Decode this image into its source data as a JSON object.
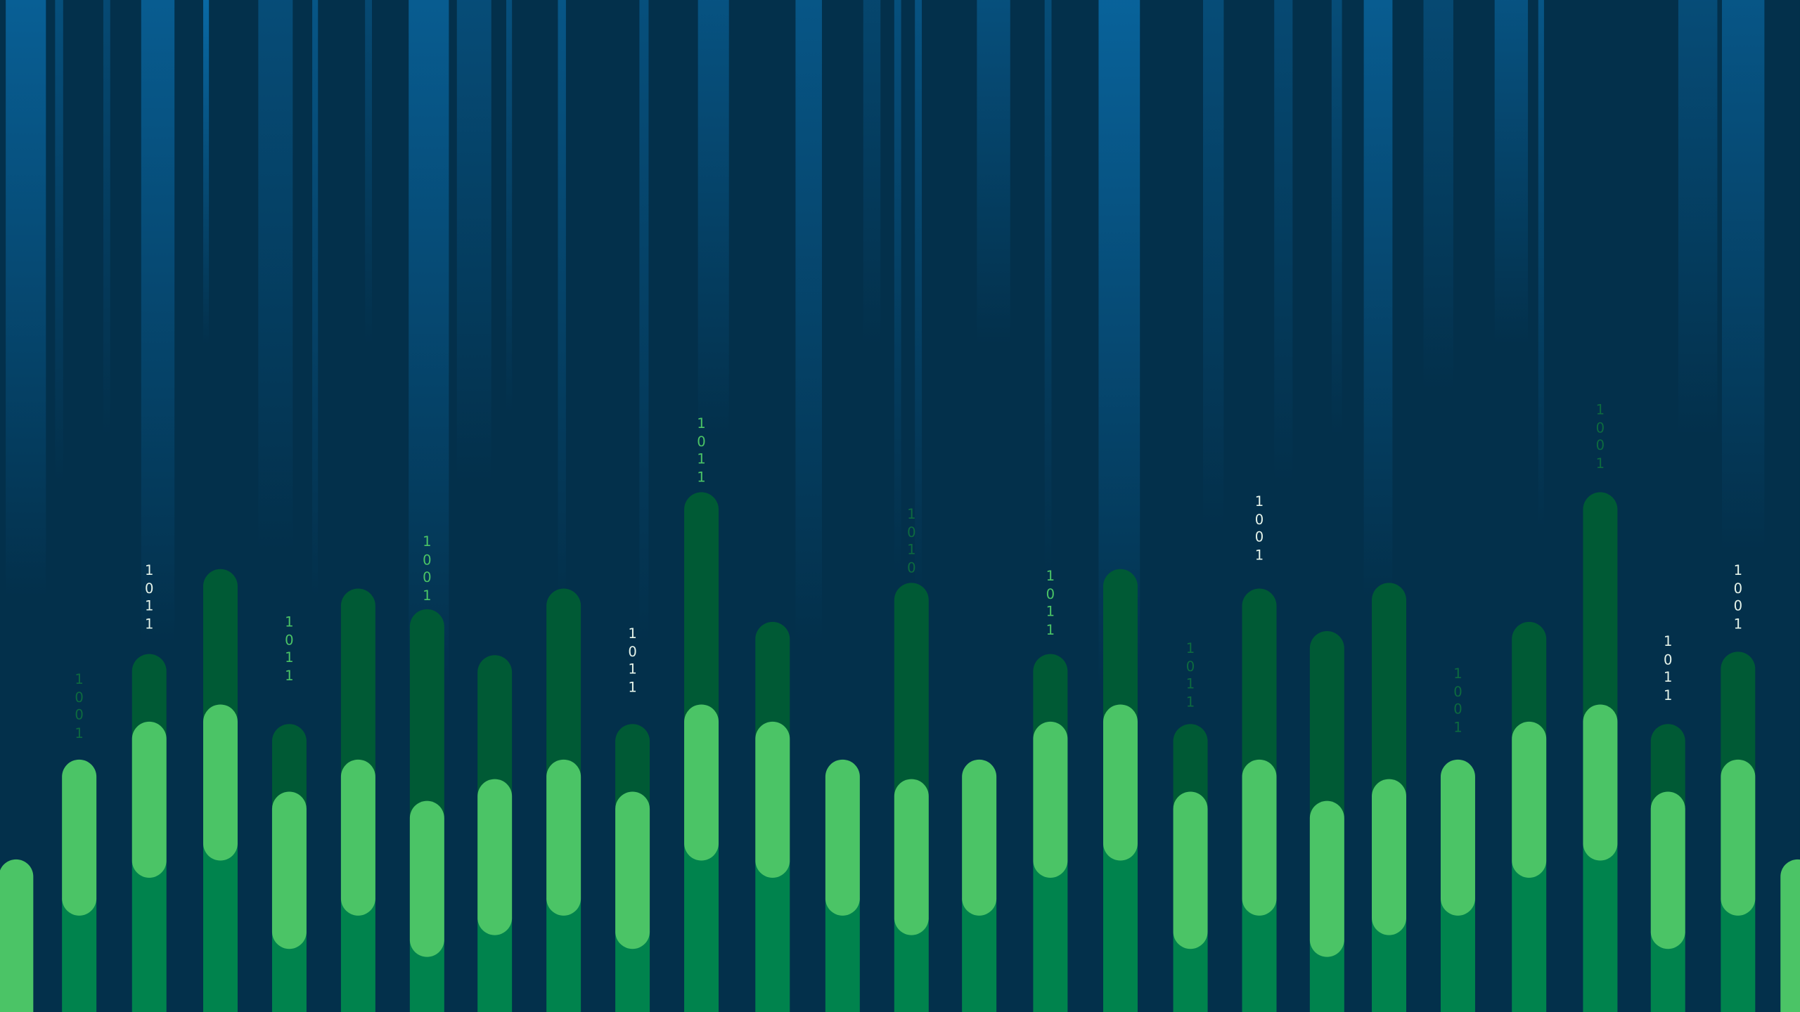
{
  "colors": {
    "background": "#03304b",
    "streak": "#0a6fae",
    "bar_dark": "#005a35",
    "bar_mid": "#00834d",
    "bar_light": "#4bc466",
    "label_bright": "#e6f4ea",
    "label_green": "#4bc466",
    "label_dim": "#0d6a3f"
  },
  "binary_labels": [
    {
      "text": "1\n0\n0\n1",
      "tone": "dim"
    },
    {
      "text": "1\n0\n1\n1",
      "tone": "bright"
    },
    {
      "text": "1\n0\n1\n1",
      "tone": "green"
    },
    {
      "text": "1\n0\n0\n1",
      "tone": "green"
    },
    {
      "text": "1\n0\n1\n1",
      "tone": "bright"
    },
    {
      "text": "1\n0\n1\n1",
      "tone": "green"
    },
    {
      "text": "1\n0\n1\n0",
      "tone": "dim"
    },
    {
      "text": "1\n0\n1\n1",
      "tone": "green"
    },
    {
      "text": "1\n0\n1\n1",
      "tone": "dim"
    },
    {
      "text": "1\n0\n0\n1",
      "tone": "bright"
    },
    {
      "text": "1\n0\n0\n1",
      "tone": "dim"
    },
    {
      "text": "1\n0\n0\n1",
      "tone": "dim"
    },
    {
      "text": "1\n0\n1\n1",
      "tone": "bright"
    },
    {
      "text": "1\n0\n0\n1",
      "tone": "bright"
    }
  ]
}
